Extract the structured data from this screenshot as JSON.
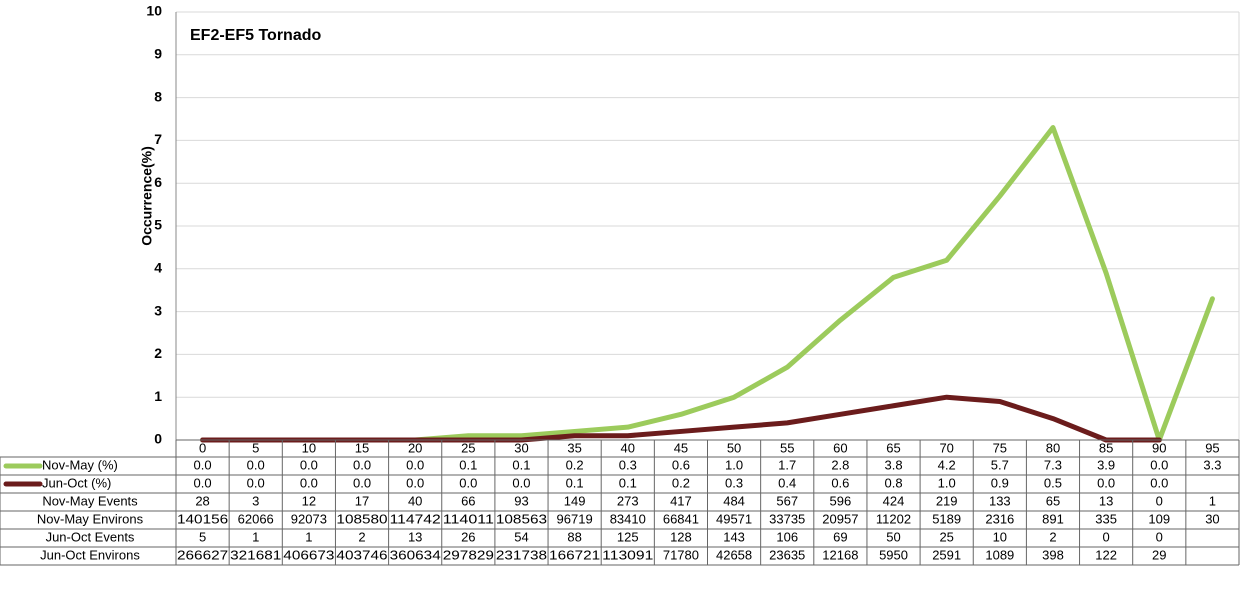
{
  "chart_data": {
    "type": "line",
    "annotation": "EF2-EF5 Tornado",
    "y_label": "Occurrence(%)",
    "categories": [
      "0",
      "5",
      "10",
      "15",
      "20",
      "25",
      "30",
      "35",
      "40",
      "45",
      "50",
      "55",
      "60",
      "65",
      "70",
      "75",
      "80",
      "85",
      "90",
      "95"
    ],
    "ylim": [
      0,
      10
    ],
    "yticks": [
      0,
      1,
      2,
      3,
      4,
      5,
      6,
      7,
      8,
      9,
      10
    ],
    "grid": true,
    "series": [
      {
        "name": "Nov-May (%)",
        "color": "#9ccb5c",
        "values": [
          0,
          0,
          0,
          0,
          0,
          0.1,
          0.1,
          0.2,
          0.3,
          0.6,
          1.0,
          1.7,
          2.8,
          3.8,
          4.2,
          5.7,
          7.3,
          3.9,
          0,
          3.3
        ],
        "value_labels": [
          "0.0",
          "0.0",
          "0.0",
          "0.0",
          "0.0",
          "0.1",
          "0.1",
          "0.2",
          "0.3",
          "0.6",
          "1.0",
          "1.7",
          "2.8",
          "3.8",
          "4.2",
          "5.7",
          "7.3",
          "3.9",
          "0.0",
          "3.3"
        ]
      },
      {
        "name": "Jun-Oct (%)",
        "color": "#6b1c1c",
        "values": [
          0,
          0,
          0,
          0,
          0,
          0,
          0,
          0.1,
          0.1,
          0.2,
          0.3,
          0.4,
          0.6,
          0.8,
          1.0,
          0.9,
          0.5,
          0,
          0,
          null
        ],
        "value_labels": [
          "0.0",
          "0.0",
          "0.0",
          "0.0",
          "0.0",
          "0.0",
          "0.0",
          "0.1",
          "0.1",
          "0.2",
          "0.3",
          "0.4",
          "0.6",
          "0.8",
          "1.0",
          "0.9",
          "0.5",
          "0.0",
          "0.0",
          null
        ]
      }
    ],
    "table_rows": [
      {
        "name": "Nov-May Events",
        "values": [
          28,
          3,
          12,
          17,
          40,
          66,
          93,
          149,
          273,
          417,
          484,
          567,
          596,
          424,
          219,
          133,
          65,
          13,
          0,
          1
        ]
      },
      {
        "name": "Nov-May Environs",
        "values": [
          140156,
          62066,
          92073,
          108580,
          114742,
          114011,
          108563,
          96719,
          83410,
          66841,
          49571,
          33735,
          20957,
          11202,
          5189,
          2316,
          891,
          335,
          109,
          30
        ]
      },
      {
        "name": "Jun-Oct Events",
        "values": [
          5,
          1,
          1,
          2,
          13,
          26,
          54,
          88,
          125,
          128,
          143,
          106,
          69,
          50,
          25,
          10,
          2,
          0,
          0,
          null
        ]
      },
      {
        "name": "Jun-Oct Environs",
        "values": [
          266627,
          321681,
          406673,
          403746,
          360634,
          297829,
          231738,
          166721,
          113091,
          71780,
          42658,
          23635,
          12168,
          5950,
          2591,
          1089,
          398,
          122,
          29,
          null
        ]
      }
    ]
  }
}
